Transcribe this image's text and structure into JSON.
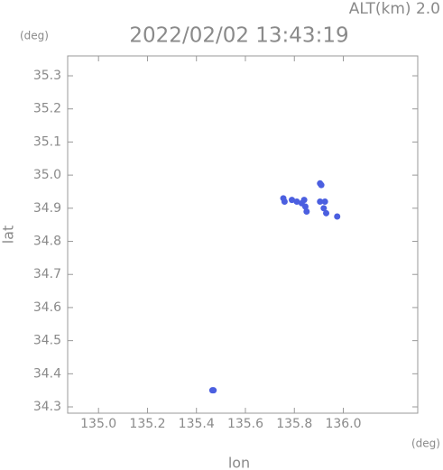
{
  "chart_data": {
    "type": "scatter",
    "title": "2022/02/02 13:43:19",
    "annotation": "ALT(km) 2.0",
    "x_label": "lon",
    "y_label": "lat",
    "x_unit": "(deg)",
    "y_unit": "(deg)",
    "xlim": [
      134.874,
      136.304
    ],
    "ylim": [
      34.281,
      35.36
    ],
    "xticks": [
      {
        "value": 135,
        "label": "135.0"
      },
      135.2,
      135.4,
      135.6,
      135.8,
      {
        "value": 136,
        "label": "136.0"
      }
    ],
    "yticks": [
      34.3,
      34.4,
      34.5,
      34.6,
      34.7,
      34.8,
      34.9,
      {
        "value": 35,
        "label": "35.0"
      },
      35.1,
      35.2,
      35.3
    ],
    "grid": false,
    "series": [
      {
        "color": "#4b5fe0",
        "x": [
          135.755,
          135.76,
          135.79,
          135.81,
          135.83,
          135.845,
          135.85,
          135.84,
          135.905,
          135.91,
          135.905,
          135.925,
          135.92,
          135.93,
          135.975,
          135.465,
          135.47
        ],
        "y": [
          34.93,
          34.92,
          34.925,
          34.92,
          34.915,
          34.905,
          34.89,
          34.925,
          34.975,
          34.97,
          34.92,
          34.92,
          34.9,
          34.885,
          34.875,
          34.35,
          34.35
        ]
      }
    ]
  }
}
